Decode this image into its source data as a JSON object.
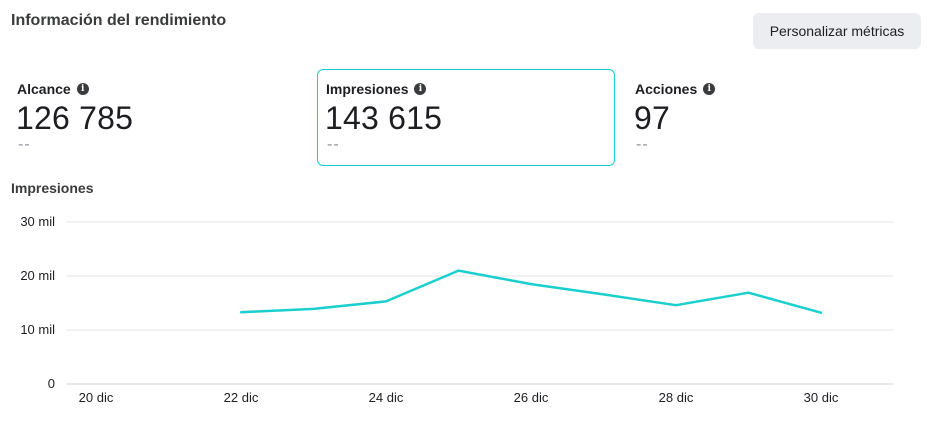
{
  "header": {
    "title": "Información del rendimiento",
    "customize_label": "Personalizar métricas"
  },
  "metrics": [
    {
      "label": "Alcance",
      "value": "126 785",
      "compare": "--",
      "info_icon": "info-icon",
      "selected": false
    },
    {
      "label": "Impresiones",
      "value": "143 615",
      "compare": "--",
      "info_icon": "info-icon",
      "selected": true
    },
    {
      "label": "Acciones",
      "value": "97",
      "compare": "--",
      "info_icon": "info-icon",
      "selected": false
    }
  ],
  "chart_title": "Impresiones",
  "colors": {
    "accent": "#1bcfcf",
    "grid": "#e4e6eb"
  },
  "chart_data": {
    "type": "line",
    "title": "Impresiones",
    "xlabel": "",
    "ylabel": "",
    "x_ticks": [
      "20 dic",
      "22 dic",
      "24 dic",
      "26 dic",
      "28 dic",
      "30 dic"
    ],
    "y_ticks": [
      "0",
      "10 mil",
      "20 mil",
      "30 mil"
    ],
    "ylim": [
      0,
      30000
    ],
    "xlim": [
      "20 dic",
      "31 dic"
    ],
    "grid": true,
    "series": [
      {
        "x": [
          "22 dic",
          "23 dic",
          "24 dic",
          "25 dic",
          "26 dic",
          "27 dic",
          "28 dic",
          "29 dic",
          "30 dic"
        ],
        "values": [
          13300,
          13900,
          15300,
          21000,
          18500,
          16600,
          14600,
          16900,
          13200
        ]
      }
    ]
  }
}
